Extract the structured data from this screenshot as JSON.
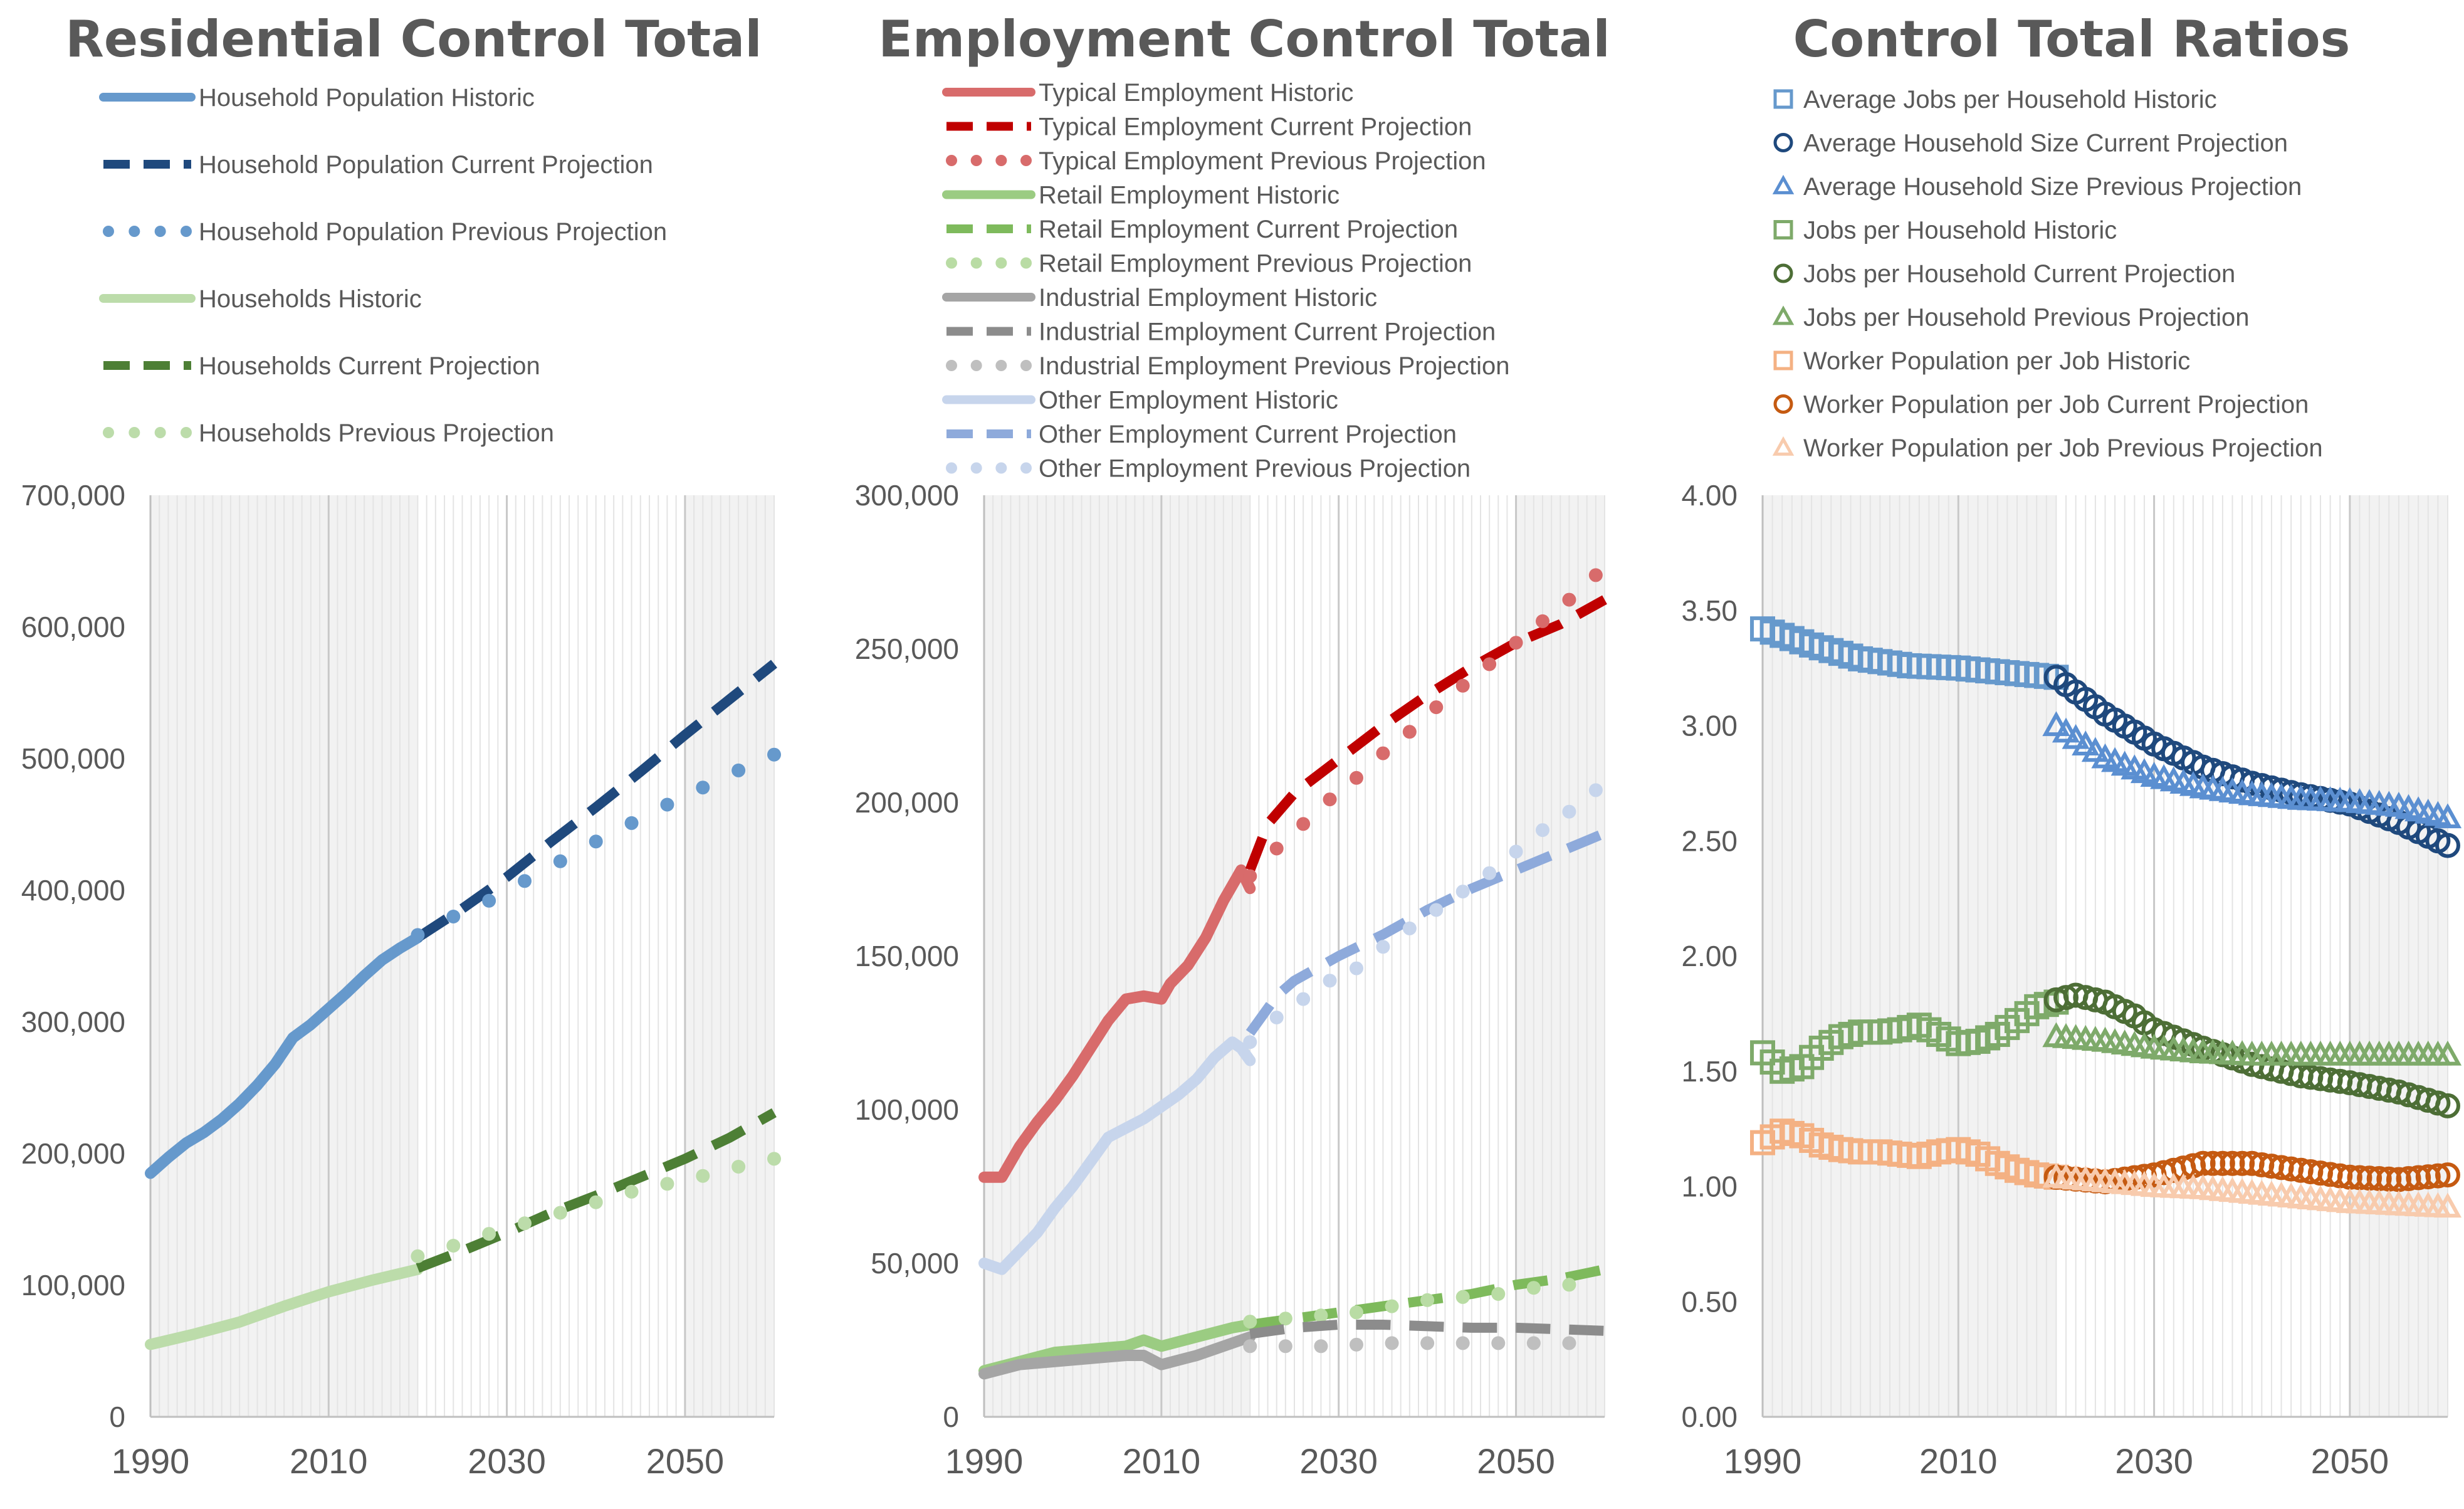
{
  "chart_data": [
    {
      "type": "line",
      "title": "Residential Control Total",
      "xlim": [
        1990,
        2060
      ],
      "ylim": [
        0,
        700000
      ],
      "x_ticks": [
        "1990",
        "2010",
        "2030",
        "2050"
      ],
      "y_ticks": [
        "0",
        "100,000",
        "200,000",
        "300,000",
        "400,000",
        "500,000",
        "600,000",
        "700,000"
      ],
      "shaded_ranges": [
        [
          1990,
          2020
        ],
        [
          2050,
          2060
        ]
      ],
      "colors": {
        "hh_pop": "#6699cc",
        "hh_pop_cur": "#1f497d",
        "hh": "#bcdcaa",
        "hh_cur": "#4d7f35",
        "shade": "#f2f2f2"
      },
      "series": [
        {
          "name": "Household Population Historic",
          "style": "solid",
          "color": "#6699cc",
          "x": [
            1990,
            1992,
            1994,
            1996,
            1998,
            2000,
            2002,
            2004,
            2006,
            2008,
            2010,
            2012,
            2014,
            2016,
            2018,
            2020
          ],
          "y": [
            185000,
            197000,
            208000,
            216000,
            226000,
            238000,
            252000,
            268000,
            288000,
            298000,
            310000,
            322000,
            335000,
            347000,
            356000,
            364000
          ]
        },
        {
          "name": "Household Population Current Projection",
          "style": "dash",
          "color": "#1f497d",
          "x": [
            2020,
            2025,
            2030,
            2035,
            2040,
            2045,
            2050,
            2055,
            2060
          ],
          "y": [
            364000,
            386000,
            410000,
            437000,
            463000,
            490000,
            518000,
            545000,
            572000
          ]
        },
        {
          "name": "Household Population Previous Projection",
          "style": "dot",
          "color": "#6699cc",
          "x": [
            2020,
            2024,
            2028,
            2032,
            2036,
            2040,
            2044,
            2048,
            2052,
            2056,
            2060
          ],
          "y": [
            366000,
            380000,
            392000,
            407000,
            422000,
            437000,
            451000,
            465000,
            478000,
            491000,
            503000
          ]
        },
        {
          "name": "Households Historic",
          "style": "solid",
          "color": "#bcdcaa",
          "x": [
            1990,
            1995,
            2000,
            2005,
            2010,
            2015,
            2020
          ],
          "y": [
            55000,
            63000,
            72000,
            84000,
            95000,
            104000,
            112000
          ]
        },
        {
          "name": "Households Current Projection",
          "style": "dash",
          "color": "#4d7f35",
          "x": [
            2020,
            2025,
            2030,
            2035,
            2040,
            2045,
            2050,
            2055,
            2060
          ],
          "y": [
            113000,
            126000,
            140000,
            155000,
            168000,
            182000,
            196000,
            212000,
            231000
          ]
        },
        {
          "name": "Households Previous Projection",
          "style": "dot",
          "color": "#bcdcaa",
          "x": [
            2020,
            2024,
            2028,
            2032,
            2036,
            2040,
            2044,
            2048,
            2052,
            2056,
            2060
          ],
          "y": [
            122000,
            130000,
            139000,
            147000,
            155000,
            163000,
            171000,
            177000,
            183000,
            190000,
            196000
          ]
        }
      ]
    },
    {
      "type": "line",
      "title": "Employment Control Total",
      "xlim": [
        1990,
        2060
      ],
      "ylim": [
        0,
        300000
      ],
      "x_ticks": [
        "1990",
        "2010",
        "2030",
        "2050"
      ],
      "y_ticks": [
        "0",
        "50,000",
        "100,000",
        "150,000",
        "200,000",
        "250,000",
        "300,000"
      ],
      "shaded_ranges": [
        [
          1990,
          2020
        ],
        [
          2050,
          2060
        ]
      ],
      "series": [
        {
          "name": "Typical Employment Historic",
          "style": "solid",
          "color": "#d86b6b",
          "x": [
            1990,
            1992,
            1994,
            1996,
            1998,
            2000,
            2002,
            2004,
            2006,
            2008,
            2010,
            2011,
            2013,
            2015,
            2017,
            2019,
            2020
          ],
          "y": [
            78000,
            78000,
            88000,
            96000,
            103000,
            111000,
            120000,
            129000,
            136000,
            137000,
            136000,
            141000,
            147000,
            156000,
            168000,
            178000,
            172000
          ]
        },
        {
          "name": "Typical Employment Current Projection",
          "style": "dash",
          "color": "#c00000",
          "x": [
            2020,
            2022,
            2025,
            2030,
            2035,
            2040,
            2045,
            2050,
            2055,
            2060
          ],
          "y": [
            178000,
            193000,
            203000,
            214000,
            225000,
            235000,
            244000,
            252000,
            258000,
            266000
          ]
        },
        {
          "name": "Typical Employment Previous Projection",
          "style": "dot",
          "color": "#d86b6b",
          "x": [
            2020,
            2023,
            2026,
            2029,
            2032,
            2035,
            2038,
            2041,
            2044,
            2047,
            2050,
            2053,
            2056,
            2059
          ],
          "y": [
            176000,
            185000,
            193000,
            201000,
            208000,
            216000,
            223000,
            231000,
            238000,
            245000,
            252000,
            259000,
            266000,
            274000
          ]
        },
        {
          "name": "Retail Employment Historic",
          "style": "solid",
          "color": "#9bcc82",
          "x": [
            1990,
            1994,
            1998,
            2002,
            2006,
            2008,
            2010,
            2014,
            2018,
            2020
          ],
          "y": [
            15000,
            18000,
            21000,
            22000,
            23000,
            25000,
            23000,
            26000,
            29000,
            30000
          ]
        },
        {
          "name": "Retail Employment Current Projection",
          "style": "dash",
          "color": "#7eba5c",
          "x": [
            2020,
            2025,
            2030,
            2035,
            2040,
            2045,
            2050,
            2055,
            2060
          ],
          "y": [
            30000,
            32000,
            34000,
            36000,
            38000,
            40000,
            43000,
            45000,
            48000
          ]
        },
        {
          "name": "Retail Employment Previous Projection",
          "style": "dot",
          "color": "#b9dca4",
          "x": [
            2020,
            2024,
            2028,
            2032,
            2036,
            2040,
            2044,
            2048,
            2052,
            2056
          ],
          "y": [
            31000,
            32000,
            33000,
            34000,
            36000,
            38000,
            39000,
            40000,
            42000,
            43000
          ]
        },
        {
          "name": "Industrial Employment Historic",
          "style": "solid",
          "color": "#a5a5a5",
          "x": [
            1990,
            1994,
            1998,
            2002,
            2006,
            2008,
            2010,
            2014,
            2018,
            2020
          ],
          "y": [
            14000,
            17000,
            18000,
            19000,
            20000,
            20000,
            17000,
            20000,
            24000,
            26000
          ]
        },
        {
          "name": "Industrial Employment Current Projection",
          "style": "dash",
          "color": "#8c8c8c",
          "x": [
            2020,
            2025,
            2030,
            2035,
            2040,
            2045,
            2050,
            2055,
            2060
          ],
          "y": [
            27000,
            29000,
            30000,
            30000,
            29500,
            29000,
            29000,
            28500,
            28000
          ]
        },
        {
          "name": "Industrial Employment Previous Projection",
          "style": "dot",
          "color": "#bfbfbf",
          "x": [
            2020,
            2024,
            2028,
            2032,
            2036,
            2040,
            2044,
            2048,
            2052,
            2056
          ],
          "y": [
            23000,
            23000,
            23000,
            23500,
            24000,
            24000,
            24000,
            24000,
            24000,
            24000
          ]
        },
        {
          "name": "Other Employment Historic",
          "style": "solid",
          "color": "#c7d5ec",
          "x": [
            1990,
            1992,
            1994,
            1996,
            1998,
            2000,
            2002,
            2004,
            2006,
            2008,
            2010,
            2012,
            2014,
            2016,
            2018,
            2019,
            2020
          ],
          "y": [
            50000,
            48000,
            54000,
            60000,
            68000,
            75000,
            83000,
            91000,
            94000,
            97000,
            101000,
            105000,
            110000,
            117000,
            122000,
            120000,
            116000
          ]
        },
        {
          "name": "Other Employment Current Projection",
          "style": "dash",
          "color": "#8eaadb",
          "x": [
            2020,
            2023,
            2025,
            2030,
            2035,
            2040,
            2045,
            2050,
            2055,
            2060
          ],
          "y": [
            125000,
            137000,
            142000,
            150000,
            157000,
            165000,
            172000,
            178000,
            184000,
            190000
          ]
        },
        {
          "name": "Other Employment Previous Projection",
          "style": "dot",
          "color": "#c7d5ec",
          "x": [
            2020,
            2023,
            2026,
            2029,
            2032,
            2035,
            2038,
            2041,
            2044,
            2047,
            2050,
            2053,
            2056,
            2059
          ],
          "y": [
            122000,
            130000,
            136000,
            142000,
            146000,
            153000,
            159000,
            165000,
            171000,
            177000,
            184000,
            191000,
            197000,
            204000
          ]
        }
      ]
    },
    {
      "type": "scatter",
      "title": "Control Total Ratios",
      "xlim": [
        1990,
        2060
      ],
      "ylim": [
        0,
        4
      ],
      "x_ticks": [
        "1990",
        "2010",
        "2030",
        "2050"
      ],
      "y_ticks": [
        "0.00",
        "0.50",
        "1.00",
        "1.50",
        "2.00",
        "2.50",
        "3.00",
        "3.50",
        "4.00"
      ],
      "shaded_ranges": [
        [
          1990,
          2020
        ],
        [
          2050,
          2060
        ]
      ],
      "series": [
        {
          "name": "Average Jobs per Household Historic",
          "marker": "square",
          "color": "#6699cc",
          "x": [
            1990,
            1995,
            2000,
            2005,
            2010,
            2015,
            2020
          ],
          "y": [
            3.42,
            3.35,
            3.29,
            3.26,
            3.25,
            3.23,
            3.21
          ]
        },
        {
          "name": "Average Household Size Current Projection",
          "marker": "circle",
          "color": "#1f497d",
          "x": [
            2020,
            2025,
            2030,
            2035,
            2040,
            2045,
            2050,
            2055,
            2060
          ],
          "y": [
            3.21,
            3.05,
            2.92,
            2.82,
            2.75,
            2.7,
            2.66,
            2.58,
            2.48
          ]
        },
        {
          "name": "Average Household Size Previous Projection",
          "marker": "triangle",
          "color": "#5b8fd1",
          "x": [
            2020,
            2025,
            2030,
            2035,
            2040,
            2045,
            2050,
            2055,
            2060
          ],
          "y": [
            3.0,
            2.86,
            2.78,
            2.73,
            2.7,
            2.68,
            2.67,
            2.65,
            2.6
          ]
        },
        {
          "name": "Jobs per Household Historic",
          "marker": "square",
          "color": "#7eaa6a",
          "x": [
            1990,
            1992,
            1994,
            1996,
            1998,
            2000,
            2002,
            2004,
            2006,
            2008,
            2010,
            2012,
            2014,
            2016,
            2018,
            2020
          ],
          "y": [
            1.58,
            1.5,
            1.52,
            1.6,
            1.65,
            1.67,
            1.67,
            1.68,
            1.7,
            1.66,
            1.62,
            1.63,
            1.66,
            1.72,
            1.78,
            1.8
          ]
        },
        {
          "name": "Jobs per Household Current Projection",
          "marker": "circle",
          "color": "#4d6e36",
          "x": [
            2020,
            2022,
            2025,
            2028,
            2030,
            2035,
            2040,
            2045,
            2050,
            2055,
            2060
          ],
          "y": [
            1.81,
            1.83,
            1.8,
            1.74,
            1.68,
            1.6,
            1.53,
            1.48,
            1.45,
            1.41,
            1.35
          ]
        },
        {
          "name": "Jobs per Household Previous Projection",
          "marker": "triangle",
          "color": "#7eaa6a",
          "x": [
            2020,
            2025,
            2030,
            2035,
            2040,
            2045,
            2050,
            2055,
            2060
          ],
          "y": [
            1.65,
            1.63,
            1.6,
            1.58,
            1.57,
            1.57,
            1.57,
            1.57,
            1.57
          ]
        },
        {
          "name": "Worker Population per Job Historic",
          "marker": "square",
          "color": "#f4b183",
          "x": [
            1990,
            1992,
            1994,
            1996,
            1998,
            2000,
            2002,
            2004,
            2006,
            2008,
            2010,
            2012,
            2014,
            2016,
            2018,
            2020
          ],
          "y": [
            1.19,
            1.24,
            1.22,
            1.18,
            1.16,
            1.15,
            1.15,
            1.14,
            1.13,
            1.15,
            1.16,
            1.14,
            1.1,
            1.07,
            1.05,
            1.04
          ]
        },
        {
          "name": "Worker Population per Job Current Projection",
          "marker": "circle",
          "color": "#c55a11",
          "x": [
            2020,
            2025,
            2030,
            2035,
            2040,
            2045,
            2050,
            2055,
            2060
          ],
          "y": [
            1.04,
            1.02,
            1.05,
            1.1,
            1.1,
            1.07,
            1.04,
            1.03,
            1.05
          ]
        },
        {
          "name": "Worker Population per Job Previous Projection",
          "marker": "triangle",
          "color": "#f8cbad",
          "x": [
            2020,
            2025,
            2030,
            2035,
            2040,
            2045,
            2050,
            2055,
            2060
          ],
          "y": [
            1.04,
            1.02,
            1.0,
            0.99,
            0.97,
            0.95,
            0.93,
            0.92,
            0.91
          ]
        }
      ]
    }
  ]
}
